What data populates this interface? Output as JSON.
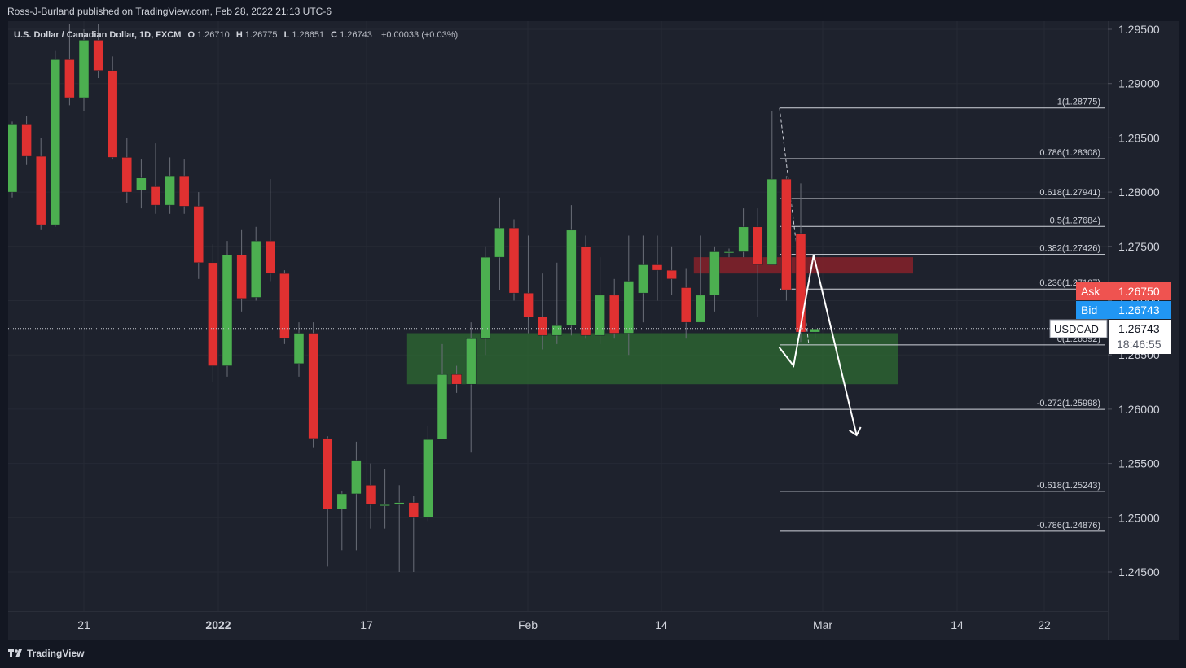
{
  "header": {
    "publisher": "Ross-J-Burland published on TradingView.com, Feb 28, 2022 21:13 UTC-6"
  },
  "legend": {
    "symbol": "U.S. Dollar / Canadian Dollar, 1D, FXCM",
    "o_label": "O",
    "o_value": "1.26710",
    "h_label": "H",
    "h_value": "1.26775",
    "l_label": "L",
    "l_value": "1.26651",
    "c_label": "C",
    "c_value": "1.26743",
    "change": "+0.00033 (+0.03%)"
  },
  "footer": {
    "brand": "TradingView"
  },
  "colors": {
    "up": "#4caf50",
    "down": "#e03131",
    "zone_green": "#2e6b32",
    "zone_red": "#8c2229",
    "ask": "#ef5350",
    "bid": "#2196f3"
  },
  "price_scale": {
    "ticks": [
      "1.29500",
      "1.29000",
      "1.28500",
      "1.28000",
      "1.27500",
      "1.27000",
      "1.26500",
      "1.26000",
      "1.25500",
      "1.25000",
      "1.24500"
    ],
    "ask_label": "Ask",
    "ask_value": "1.26750",
    "bid_label": "Bid",
    "bid_value": "1.26743",
    "symbol_label": "USDCAD",
    "last_value": "1.26743",
    "countdown": "18:46:55"
  },
  "time_axis": {
    "labels": [
      "21",
      "2022",
      "17",
      "Feb",
      "14",
      "Mar",
      "14",
      "22"
    ]
  },
  "fib_levels": [
    {
      "label": "1(1.28775)",
      "price": 1.28775
    },
    {
      "label": "0.786(1.28308)",
      "price": 1.28308
    },
    {
      "label": "0.618(1.27941)",
      "price": 1.27941
    },
    {
      "label": "0.5(1.27684)",
      "price": 1.27684
    },
    {
      "label": "0.382(1.27426)",
      "price": 1.27426
    },
    {
      "label": "0.236(1.27107)",
      "price": 1.27107
    },
    {
      "label": "0(1.26592)",
      "price": 1.26592
    },
    {
      "label": "-0.272(1.25998)",
      "price": 1.25998
    },
    {
      "label": "-0.618(1.25243)",
      "price": 1.25243
    },
    {
      "label": "-0.786(1.24876)",
      "price": 1.24876
    }
  ],
  "chart_data": {
    "type": "candlestick",
    "symbol": "USDCAD",
    "timeframe": "1D",
    "ylim": [
      1.2425,
      1.2975
    ],
    "zones": [
      {
        "type": "demand",
        "from_index": 28,
        "to_index": 57,
        "top": 1.267,
        "bottom": 1.2623
      },
      {
        "type": "supply",
        "from_index": 48,
        "to_index": 57,
        "top": 1.274,
        "bottom": 1.2725
      }
    ],
    "projection": [
      {
        "index": 53.5,
        "price": 1.2657
      },
      {
        "index": 54.5,
        "price": 1.264
      },
      {
        "index": 55.9,
        "price": 1.2742
      },
      {
        "index": 58.9,
        "price": 1.2576
      }
    ],
    "candles": [
      {
        "o": 1.28,
        "h": 1.2865,
        "l": 1.2795,
        "c": 1.2862
      },
      {
        "o": 1.2862,
        "h": 1.287,
        "l": 1.2825,
        "c": 1.2833
      },
      {
        "o": 1.2833,
        "h": 1.285,
        "l": 1.2765,
        "c": 1.277
      },
      {
        "o": 1.277,
        "h": 1.293,
        "l": 1.2768,
        "c": 1.2922
      },
      {
        "o": 1.2922,
        "h": 1.2955,
        "l": 1.288,
        "c": 1.2887
      },
      {
        "o": 1.2887,
        "h": 1.295,
        "l": 1.2875,
        "c": 1.294
      },
      {
        "o": 1.294,
        "h": 1.2955,
        "l": 1.2905,
        "c": 1.2912
      },
      {
        "o": 1.2912,
        "h": 1.2925,
        "l": 1.283,
        "c": 1.2832
      },
      {
        "o": 1.2832,
        "h": 1.285,
        "l": 1.279,
        "c": 1.28
      },
      {
        "o": 1.2802,
        "h": 1.283,
        "l": 1.2785,
        "c": 1.2813
      },
      {
        "o": 1.2805,
        "h": 1.2845,
        "l": 1.278,
        "c": 1.2788
      },
      {
        "o": 1.2788,
        "h": 1.2832,
        "l": 1.278,
        "c": 1.2815
      },
      {
        "o": 1.2815,
        "h": 1.283,
        "l": 1.278,
        "c": 1.2787
      },
      {
        "o": 1.2787,
        "h": 1.28,
        "l": 1.272,
        "c": 1.2735
      },
      {
        "o": 1.2735,
        "h": 1.2752,
        "l": 1.2625,
        "c": 1.264
      },
      {
        "o": 1.264,
        "h": 1.2755,
        "l": 1.263,
        "c": 1.2742
      },
      {
        "o": 1.2742,
        "h": 1.2765,
        "l": 1.269,
        "c": 1.2702
      },
      {
        "o": 1.2703,
        "h": 1.2768,
        "l": 1.27,
        "c": 1.2755
      },
      {
        "o": 1.2755,
        "h": 1.2812,
        "l": 1.2718,
        "c": 1.2725
      },
      {
        "o": 1.2725,
        "h": 1.2728,
        "l": 1.266,
        "c": 1.2665
      },
      {
        "o": 1.2642,
        "h": 1.268,
        "l": 1.263,
        "c": 1.267
      },
      {
        "o": 1.267,
        "h": 1.268,
        "l": 1.2565,
        "c": 1.2573
      },
      {
        "o": 1.2573,
        "h": 1.2575,
        "l": 1.2455,
        "c": 1.2508
      },
      {
        "o": 1.2508,
        "h": 1.2525,
        "l": 1.247,
        "c": 1.2522
      },
      {
        "o": 1.2522,
        "h": 1.257,
        "l": 1.247,
        "c": 1.2553
      },
      {
        "o": 1.253,
        "h": 1.255,
        "l": 1.249,
        "c": 1.2512
      },
      {
        "o": 1.2512,
        "h": 1.2545,
        "l": 1.249,
        "c": 1.2512
      },
      {
        "o": 1.2512,
        "h": 1.253,
        "l": 1.245,
        "c": 1.2514
      },
      {
        "o": 1.2514,
        "h": 1.252,
        "l": 1.245,
        "c": 1.25
      },
      {
        "o": 1.25,
        "h": 1.2585,
        "l": 1.2497,
        "c": 1.2572
      },
      {
        "o": 1.2572,
        "h": 1.266,
        "l": 1.2572,
        "c": 1.2632
      },
      {
        "o": 1.2632,
        "h": 1.264,
        "l": 1.2615,
        "c": 1.2623
      },
      {
        "o": 1.2623,
        "h": 1.268,
        "l": 1.256,
        "c": 1.2665
      },
      {
        "o": 1.2665,
        "h": 1.275,
        "l": 1.265,
        "c": 1.274
      },
      {
        "o": 1.274,
        "h": 1.2795,
        "l": 1.271,
        "c": 1.2767
      },
      {
        "o": 1.2767,
        "h": 1.2775,
        "l": 1.27,
        "c": 1.2707
      },
      {
        "o": 1.2707,
        "h": 1.276,
        "l": 1.267,
        "c": 1.2685
      },
      {
        "o": 1.2685,
        "h": 1.2725,
        "l": 1.2655,
        "c": 1.2668
      },
      {
        "o": 1.2668,
        "h": 1.2735,
        "l": 1.266,
        "c": 1.2677
      },
      {
        "o": 1.2677,
        "h": 1.2788,
        "l": 1.2668,
        "c": 1.2765
      },
      {
        "o": 1.275,
        "h": 1.276,
        "l": 1.2665,
        "c": 1.2668
      },
      {
        "o": 1.2668,
        "h": 1.274,
        "l": 1.266,
        "c": 1.2705
      },
      {
        "o": 1.2705,
        "h": 1.272,
        "l": 1.2665,
        "c": 1.267
      },
      {
        "o": 1.267,
        "h": 1.276,
        "l": 1.265,
        "c": 1.2718
      },
      {
        "o": 1.2707,
        "h": 1.276,
        "l": 1.268,
        "c": 1.2733
      },
      {
        "o": 1.2733,
        "h": 1.276,
        "l": 1.27,
        "c": 1.2728
      },
      {
        "o": 1.2728,
        "h": 1.275,
        "l": 1.2705,
        "c": 1.272
      },
      {
        "o": 1.2712,
        "h": 1.273,
        "l": 1.2665,
        "c": 1.268
      },
      {
        "o": 1.268,
        "h": 1.276,
        "l": 1.268,
        "c": 1.2705
      },
      {
        "o": 1.2705,
        "h": 1.275,
        "l": 1.269,
        "c": 1.2745
      },
      {
        "o": 1.2745,
        "h": 1.2748,
        "l": 1.274,
        "c": 1.2745
      },
      {
        "o": 1.2745,
        "h": 1.2785,
        "l": 1.274,
        "c": 1.2768
      },
      {
        "o": 1.2768,
        "h": 1.2785,
        "l": 1.2685,
        "c": 1.2733
      },
      {
        "o": 1.2733,
        "h": 1.2875,
        "l": 1.2733,
        "c": 1.2812
      },
      {
        "o": 1.2812,
        "h": 1.2815,
        "l": 1.27,
        "c": 1.271
      },
      {
        "o": 1.2762,
        "h": 1.2808,
        "l": 1.2662,
        "c": 1.2671
      },
      {
        "o": 1.2671,
        "h": 1.2678,
        "l": 1.2665,
        "c": 1.2674
      }
    ]
  }
}
